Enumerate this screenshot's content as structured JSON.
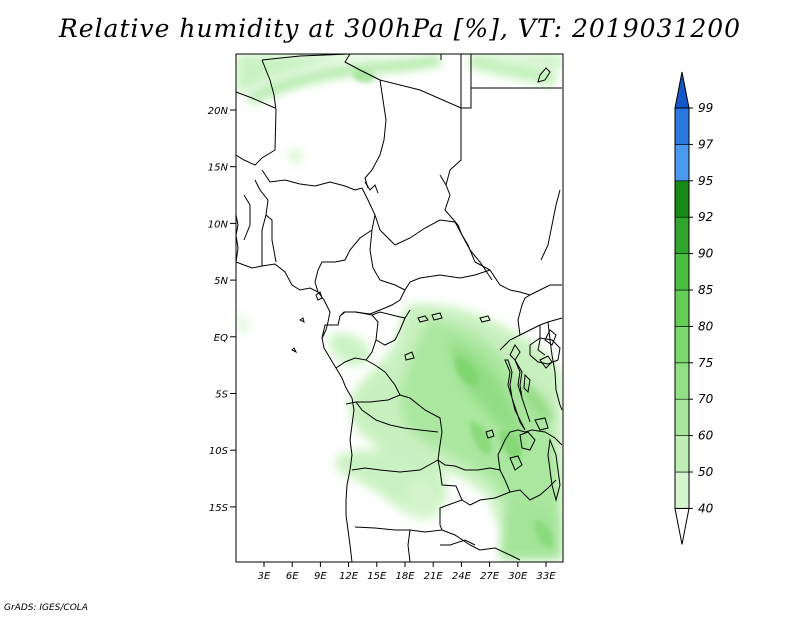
{
  "title": "Relative humidity at 300hPa [%], VT: 2019031200",
  "credit": "GrADS: IGES/COLA",
  "axes": {
    "lat_ticks": [
      "20N",
      "15N",
      "10N",
      "5N",
      "EQ",
      "5S",
      "10S",
      "15S"
    ],
    "lon_ticks": [
      "3E",
      "6E",
      "9E",
      "12E",
      "15E",
      "18E",
      "21E",
      "24E",
      "27E",
      "30E",
      "33E"
    ],
    "lon_range": [
      0,
      35
    ],
    "lat_range": [
      -20,
      25
    ]
  },
  "colorbar": {
    "levels": [
      "40",
      "50",
      "60",
      "70",
      "75",
      "80",
      "85",
      "90",
      "92",
      "95",
      "97",
      "99"
    ],
    "colors": [
      "#eefaea",
      "#d6f5cf",
      "#bfeeb5",
      "#a8e79c",
      "#92e084",
      "#7cd96c",
      "#63cd55",
      "#49bf3f",
      "#2fa52b",
      "#158a17",
      "#4a9af0",
      "#2a78e0",
      "#1457c8"
    ],
    "under_color": "#ffffff",
    "over_color": "#1457c8"
  },
  "field": {
    "variable": "relative humidity",
    "level": "300hPa",
    "units": "%",
    "valid_time": "2019031200"
  }
}
